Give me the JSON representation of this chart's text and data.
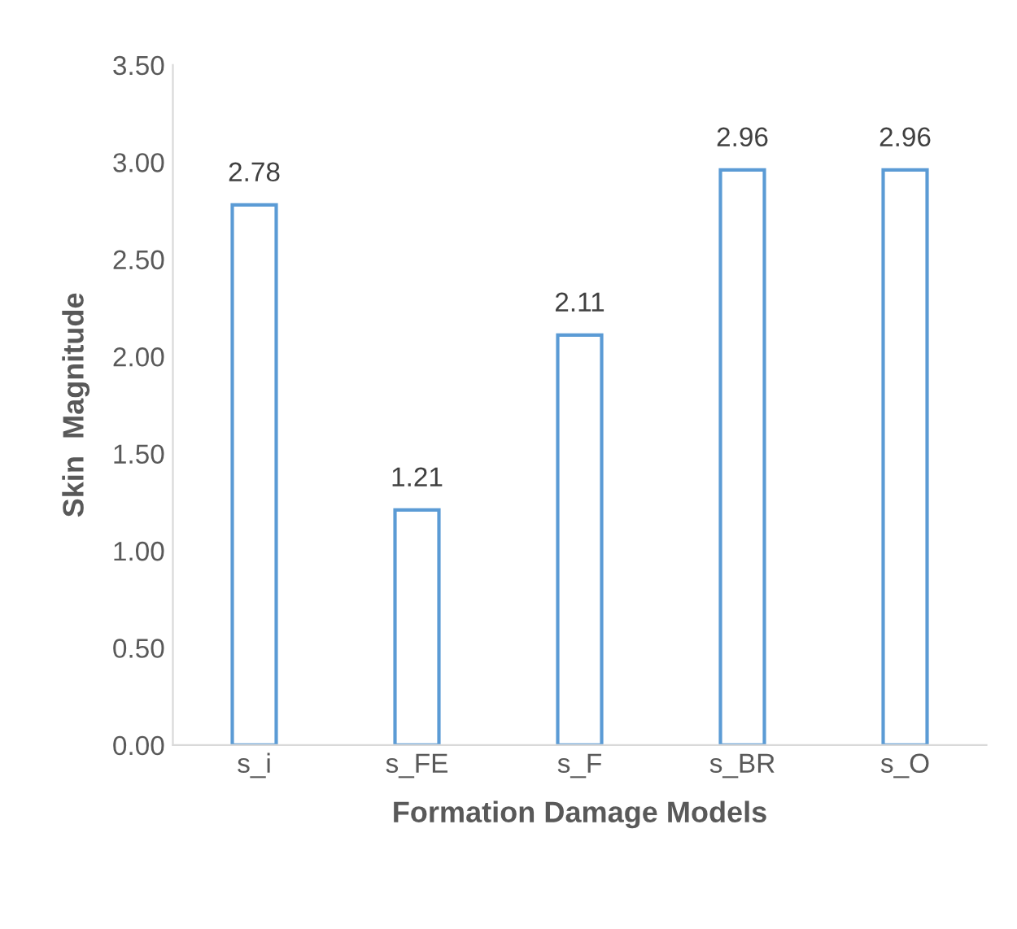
{
  "chart_data": {
    "type": "bar",
    "xlabel": "Formation Damage Models",
    "ylabel": "Skin  Magnitude",
    "categories": [
      "s_i",
      "s_FE",
      "s_F",
      "s_BR",
      "s_O"
    ],
    "values": [
      2.78,
      1.21,
      2.11,
      2.96,
      2.96
    ],
    "color": "#5b9bd5",
    "data_labels": true,
    "ylim": [
      0,
      3.5
    ],
    "yticks": [
      {
        "value": 0,
        "label": "0.00"
      },
      {
        "value": 0.5,
        "label": "0.50"
      },
      {
        "value": 1,
        "label": "1.00"
      },
      {
        "value": 1.5,
        "label": "1.50"
      },
      {
        "value": 2,
        "label": "2.00"
      },
      {
        "value": 2.5,
        "label": "2.50"
      },
      {
        "value": 3,
        "label": "3.00"
      },
      {
        "value": 3.5,
        "label": "3.50"
      }
    ],
    "grid": false,
    "legend": false
  }
}
